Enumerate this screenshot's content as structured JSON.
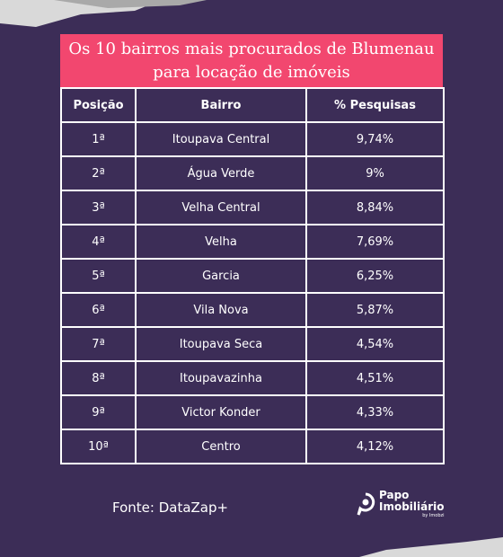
{
  "header": {
    "title": "Os 10 bairros mais procurados de Blumenau para locação de imóveis"
  },
  "table": {
    "columns": [
      "Posição",
      "Bairro",
      "% Pesquisas"
    ],
    "rows": [
      [
        "1ª",
        "Itoupava Central",
        "9,74%"
      ],
      [
        "2ª",
        "Água Verde",
        "9%"
      ],
      [
        "3ª",
        "Velha Central",
        "8,84%"
      ],
      [
        "4ª",
        "Velha",
        "7,69%"
      ],
      [
        "5ª",
        "Garcia",
        "6,25%"
      ],
      [
        "6ª",
        "Vila Nova",
        "5,87%"
      ],
      [
        "7ª",
        "Itoupava Seca",
        "4,54%"
      ],
      [
        "8ª",
        "Itoupavazinha",
        "4,51%"
      ],
      [
        "9ª",
        "Victor Konder",
        "4,33%"
      ],
      [
        "10ª",
        "Centro",
        "4,12%"
      ]
    ]
  },
  "footer": {
    "source": "Fonte: DataZap+"
  },
  "logo": {
    "line1": "Papo",
    "line2": "Imobiliário",
    "tagline": "by Imobzi"
  }
}
